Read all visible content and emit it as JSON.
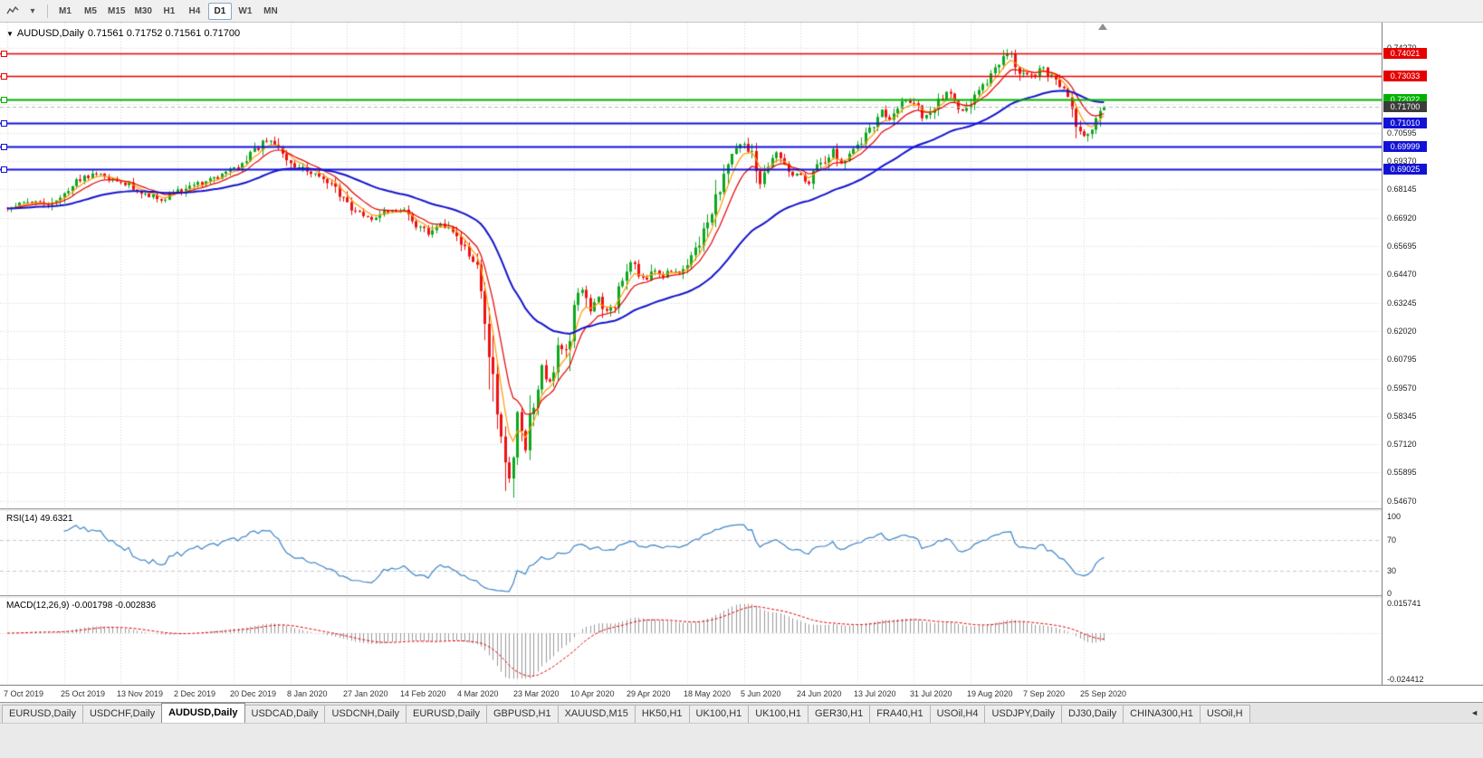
{
  "toolbar": {
    "timeframes": [
      "M1",
      "M5",
      "M15",
      "M30",
      "H1",
      "H4",
      "D1",
      "W1",
      "MN"
    ],
    "active": "D1"
  },
  "chart": {
    "header": {
      "dropdown_icon": "▼",
      "title": "AUDUSD,Daily",
      "ohlc": "0.71561 0.71752 0.71561 0.71700"
    }
  },
  "price_axis": {
    "plain_labels": [
      {
        "text": "0.74270",
        "price": 0.7427
      },
      {
        "text": "0.70595",
        "price": 0.70595
      },
      {
        "text": "0.69370",
        "price": 0.6937
      },
      {
        "text": "0.68145",
        "price": 0.68145
      },
      {
        "text": "0.66920",
        "price": 0.6692
      },
      {
        "text": "0.65695",
        "price": 0.65695
      },
      {
        "text": "0.64470",
        "price": 0.6447
      },
      {
        "text": "0.63245",
        "price": 0.63245
      },
      {
        "text": "0.62020",
        "price": 0.6202
      },
      {
        "text": "0.60795",
        "price": 0.60795
      },
      {
        "text": "0.59570",
        "price": 0.5957
      },
      {
        "text": "0.58345",
        "price": 0.58345
      },
      {
        "text": "0.57120",
        "price": 0.5712
      },
      {
        "text": "0.55895",
        "price": 0.55895
      },
      {
        "text": "0.54670",
        "price": 0.5467
      }
    ],
    "badges": [
      {
        "text": "0.74021",
        "price": 0.74021,
        "color": "#e60000"
      },
      {
        "text": "0.73033",
        "price": 0.73033,
        "color": "#e60000"
      },
      {
        "text": "0.72022",
        "price": 0.72022,
        "color": "#00b100"
      },
      {
        "text": "0.71700",
        "price": 0.717,
        "color": "#3c3c3c"
      },
      {
        "text": "0.71010",
        "price": 0.7101,
        "color": "#1212d6"
      },
      {
        "text": "0.69999",
        "price": 0.69999,
        "color": "#1212d6"
      },
      {
        "text": "0.69025",
        "price": 0.69025,
        "color": "#1212d6"
      }
    ]
  },
  "rsi": {
    "label": "RSI(14) 49.6321",
    "axis_labels": [
      {
        "text": "100",
        "value": 100
      },
      {
        "text": "70",
        "value": 70
      },
      {
        "text": "30",
        "value": 30
      },
      {
        "text": "0",
        "value": 0
      }
    ],
    "levels": [
      70,
      30
    ],
    "line_color": "#3d85c8"
  },
  "macd": {
    "label": "MACD(12,26,9) -0.001798 -0.002836",
    "max_label": "0.015741",
    "min_label": "-0.024412",
    "max": 0.015741,
    "min": -0.024412,
    "hist_color": "#9a9a9a",
    "signal_color": "#e60000"
  },
  "date_axis": {
    "ticks": [
      "7 Oct 2019",
      "25 Oct 2019",
      "13 Nov 2019",
      "2 Dec 2019",
      "20 Dec 2019",
      "8 Jan 2020",
      "27 Jan 2020",
      "14 Feb 2020",
      "4 Mar 2020",
      "23 Mar 2020",
      "10 Apr 2020",
      "29 Apr 2020",
      "18 May 2020",
      "5 Jun 2020",
      "24 Jun 2020",
      "13 Jul 2020",
      "31 Jul 2020",
      "19 Aug 2020",
      "7 Sep 2020",
      "25 Sep 2020"
    ]
  },
  "tabs": {
    "items": [
      "EURUSD,Daily",
      "USDCHF,Daily",
      "AUDUSD,Daily",
      "USDCAD,Daily",
      "USDCNH,Daily",
      "EURUSD,Daily",
      "GBPUSD,H1",
      "XAUUSD,M15",
      "HK50,H1",
      "UK100,H1",
      "UK100,H1",
      "GER30,H1",
      "FRA40,H1",
      "USOil,H4",
      "USDJPY,Daily",
      "DJ30,Daily",
      "CHINA300,H1",
      "USOil,H"
    ],
    "active_index": 2,
    "scroll_left_icon": "◄"
  },
  "chart_data": {
    "type": "candlestick",
    "symbol": "AUDUSD",
    "period": "Daily",
    "open": 0.71561,
    "high": 0.71752,
    "low": 0.71561,
    "close": 0.717,
    "n_candles": 272,
    "candles_per_tick": 14,
    "ylim": [
      0.5435,
      0.7535
    ],
    "grid_step": 0.01225,
    "grid_base": 0.5467,
    "price_anchors": [
      [
        0,
        0.6735
      ],
      [
        6,
        0.6762
      ],
      [
        10,
        0.6745
      ],
      [
        14,
        0.6798
      ],
      [
        18,
        0.6858
      ],
      [
        22,
        0.6886
      ],
      [
        26,
        0.6862
      ],
      [
        30,
        0.6836
      ],
      [
        34,
        0.6796
      ],
      [
        38,
        0.6772
      ],
      [
        42,
        0.6802
      ],
      [
        46,
        0.6834
      ],
      [
        50,
        0.6856
      ],
      [
        54,
        0.6882
      ],
      [
        58,
        0.692
      ],
      [
        62,
        0.6996
      ],
      [
        64,
        0.7026
      ],
      [
        66,
        0.7008
      ],
      [
        70,
        0.6928
      ],
      [
        74,
        0.6892
      ],
      [
        78,
        0.6858
      ],
      [
        82,
        0.6792
      ],
      [
        86,
        0.6712
      ],
      [
        90,
        0.669
      ],
      [
        94,
        0.6722
      ],
      [
        98,
        0.6712
      ],
      [
        100,
        0.6662
      ],
      [
        104,
        0.6626
      ],
      [
        106,
        0.6664
      ],
      [
        108,
        0.665
      ],
      [
        112,
        0.6582
      ],
      [
        114,
        0.6512
      ],
      [
        116,
        0.6462
      ],
      [
        118,
        0.6282
      ],
      [
        120,
        0.5982
      ],
      [
        122,
        0.5752
      ],
      [
        124,
        0.5562
      ],
      [
        126,
        0.5842
      ],
      [
        128,
        0.5702
      ],
      [
        130,
        0.5922
      ],
      [
        132,
        0.6052
      ],
      [
        134,
        0.5982
      ],
      [
        136,
        0.6152
      ],
      [
        138,
        0.6102
      ],
      [
        140,
        0.6332
      ],
      [
        142,
        0.6372
      ],
      [
        144,
        0.6292
      ],
      [
        146,
        0.6352
      ],
      [
        148,
        0.6282
      ],
      [
        150,
        0.6322
      ],
      [
        152,
        0.6432
      ],
      [
        154,
        0.6502
      ],
      [
        156,
        0.6452
      ],
      [
        158,
        0.6422
      ],
      [
        160,
        0.6472
      ],
      [
        162,
        0.6442
      ],
      [
        164,
        0.6462
      ],
      [
        166,
        0.6442
      ],
      [
        168,
        0.6482
      ],
      [
        170,
        0.6552
      ],
      [
        172,
        0.6642
      ],
      [
        174,
        0.6702
      ],
      [
        176,
        0.6822
      ],
      [
        178,
        0.6922
      ],
      [
        180,
        0.6982
      ],
      [
        182,
        0.7008
      ],
      [
        184,
        0.6948
      ],
      [
        186,
        0.6832
      ],
      [
        188,
        0.6902
      ],
      [
        190,
        0.6978
      ],
      [
        192,
        0.6932
      ],
      [
        194,
        0.6882
      ],
      [
        196,
        0.6872
      ],
      [
        198,
        0.6842
      ],
      [
        200,
        0.6902
      ],
      [
        202,
        0.6942
      ],
      [
        204,
        0.6982
      ],
      [
        206,
        0.6932
      ],
      [
        208,
        0.6982
      ],
      [
        210,
        0.7002
      ],
      [
        212,
        0.7042
      ],
      [
        214,
        0.7102
      ],
      [
        216,
        0.7152
      ],
      [
        218,
        0.7122
      ],
      [
        220,
        0.7162
      ],
      [
        222,
        0.7202
      ],
      [
        224,
        0.7182
      ],
      [
        226,
        0.7122
      ],
      [
        228,
        0.7152
      ],
      [
        230,
        0.7192
      ],
      [
        232,
        0.7232
      ],
      [
        234,
        0.7182
      ],
      [
        236,
        0.7152
      ],
      [
        238,
        0.7182
      ],
      [
        240,
        0.7232
      ],
      [
        242,
        0.7282
      ],
      [
        244,
        0.7332
      ],
      [
        246,
        0.7372
      ],
      [
        248,
        0.7408
      ],
      [
        250,
        0.7332
      ],
      [
        252,
        0.7302
      ],
      [
        254,
        0.7312
      ],
      [
        256,
        0.7342
      ],
      [
        258,
        0.7302
      ],
      [
        260,
        0.7262
      ],
      [
        262,
        0.7222
      ],
      [
        264,
        0.7102
      ],
      [
        266,
        0.7042
      ],
      [
        268,
        0.7072
      ],
      [
        270,
        0.7132
      ],
      [
        271,
        0.717
      ]
    ],
    "low_extreme": {
      "index": 123,
      "price": 0.551
    },
    "high_extreme": {
      "index": 248,
      "price": 0.7414
    },
    "colors": {
      "up": "#0ba81e",
      "down": "#ee1111",
      "background": "#ffffff",
      "grid": "#d9d9d9"
    },
    "moving_averages": [
      {
        "period": 5,
        "color": "#ff9900",
        "width": 1.2
      },
      {
        "period": 10,
        "color": "#e60000",
        "width": 1.2
      },
      {
        "period": 40,
        "color": "#1414cc",
        "width": 2
      }
    ],
    "horizontal_lines": [
      {
        "price": 0.74021,
        "color": "#e60000",
        "width": 1.5
      },
      {
        "price": 0.73033,
        "color": "#e60000",
        "width": 1.5
      },
      {
        "price": 0.72022,
        "color": "#00b100",
        "width": 2
      },
      {
        "price": 0.7101,
        "color": "#1212d6",
        "width": 2
      },
      {
        "price": 0.69999,
        "color": "#1212d6",
        "width": 2
      },
      {
        "price": 0.69025,
        "color": "#1212d6",
        "width": 2
      }
    ],
    "current_price": 0.717,
    "indicators": {
      "rsi": {
        "period": 14,
        "current": 49.6321,
        "range": [
          0,
          100
        ],
        "levels": [
          30,
          70
        ]
      },
      "macd": {
        "fast": 12,
        "slow": 26,
        "signal_period": 9,
        "macd_value": -0.001798,
        "signal_value": -0.002836,
        "range": [
          -0.024412,
          0.015741
        ]
      }
    }
  }
}
